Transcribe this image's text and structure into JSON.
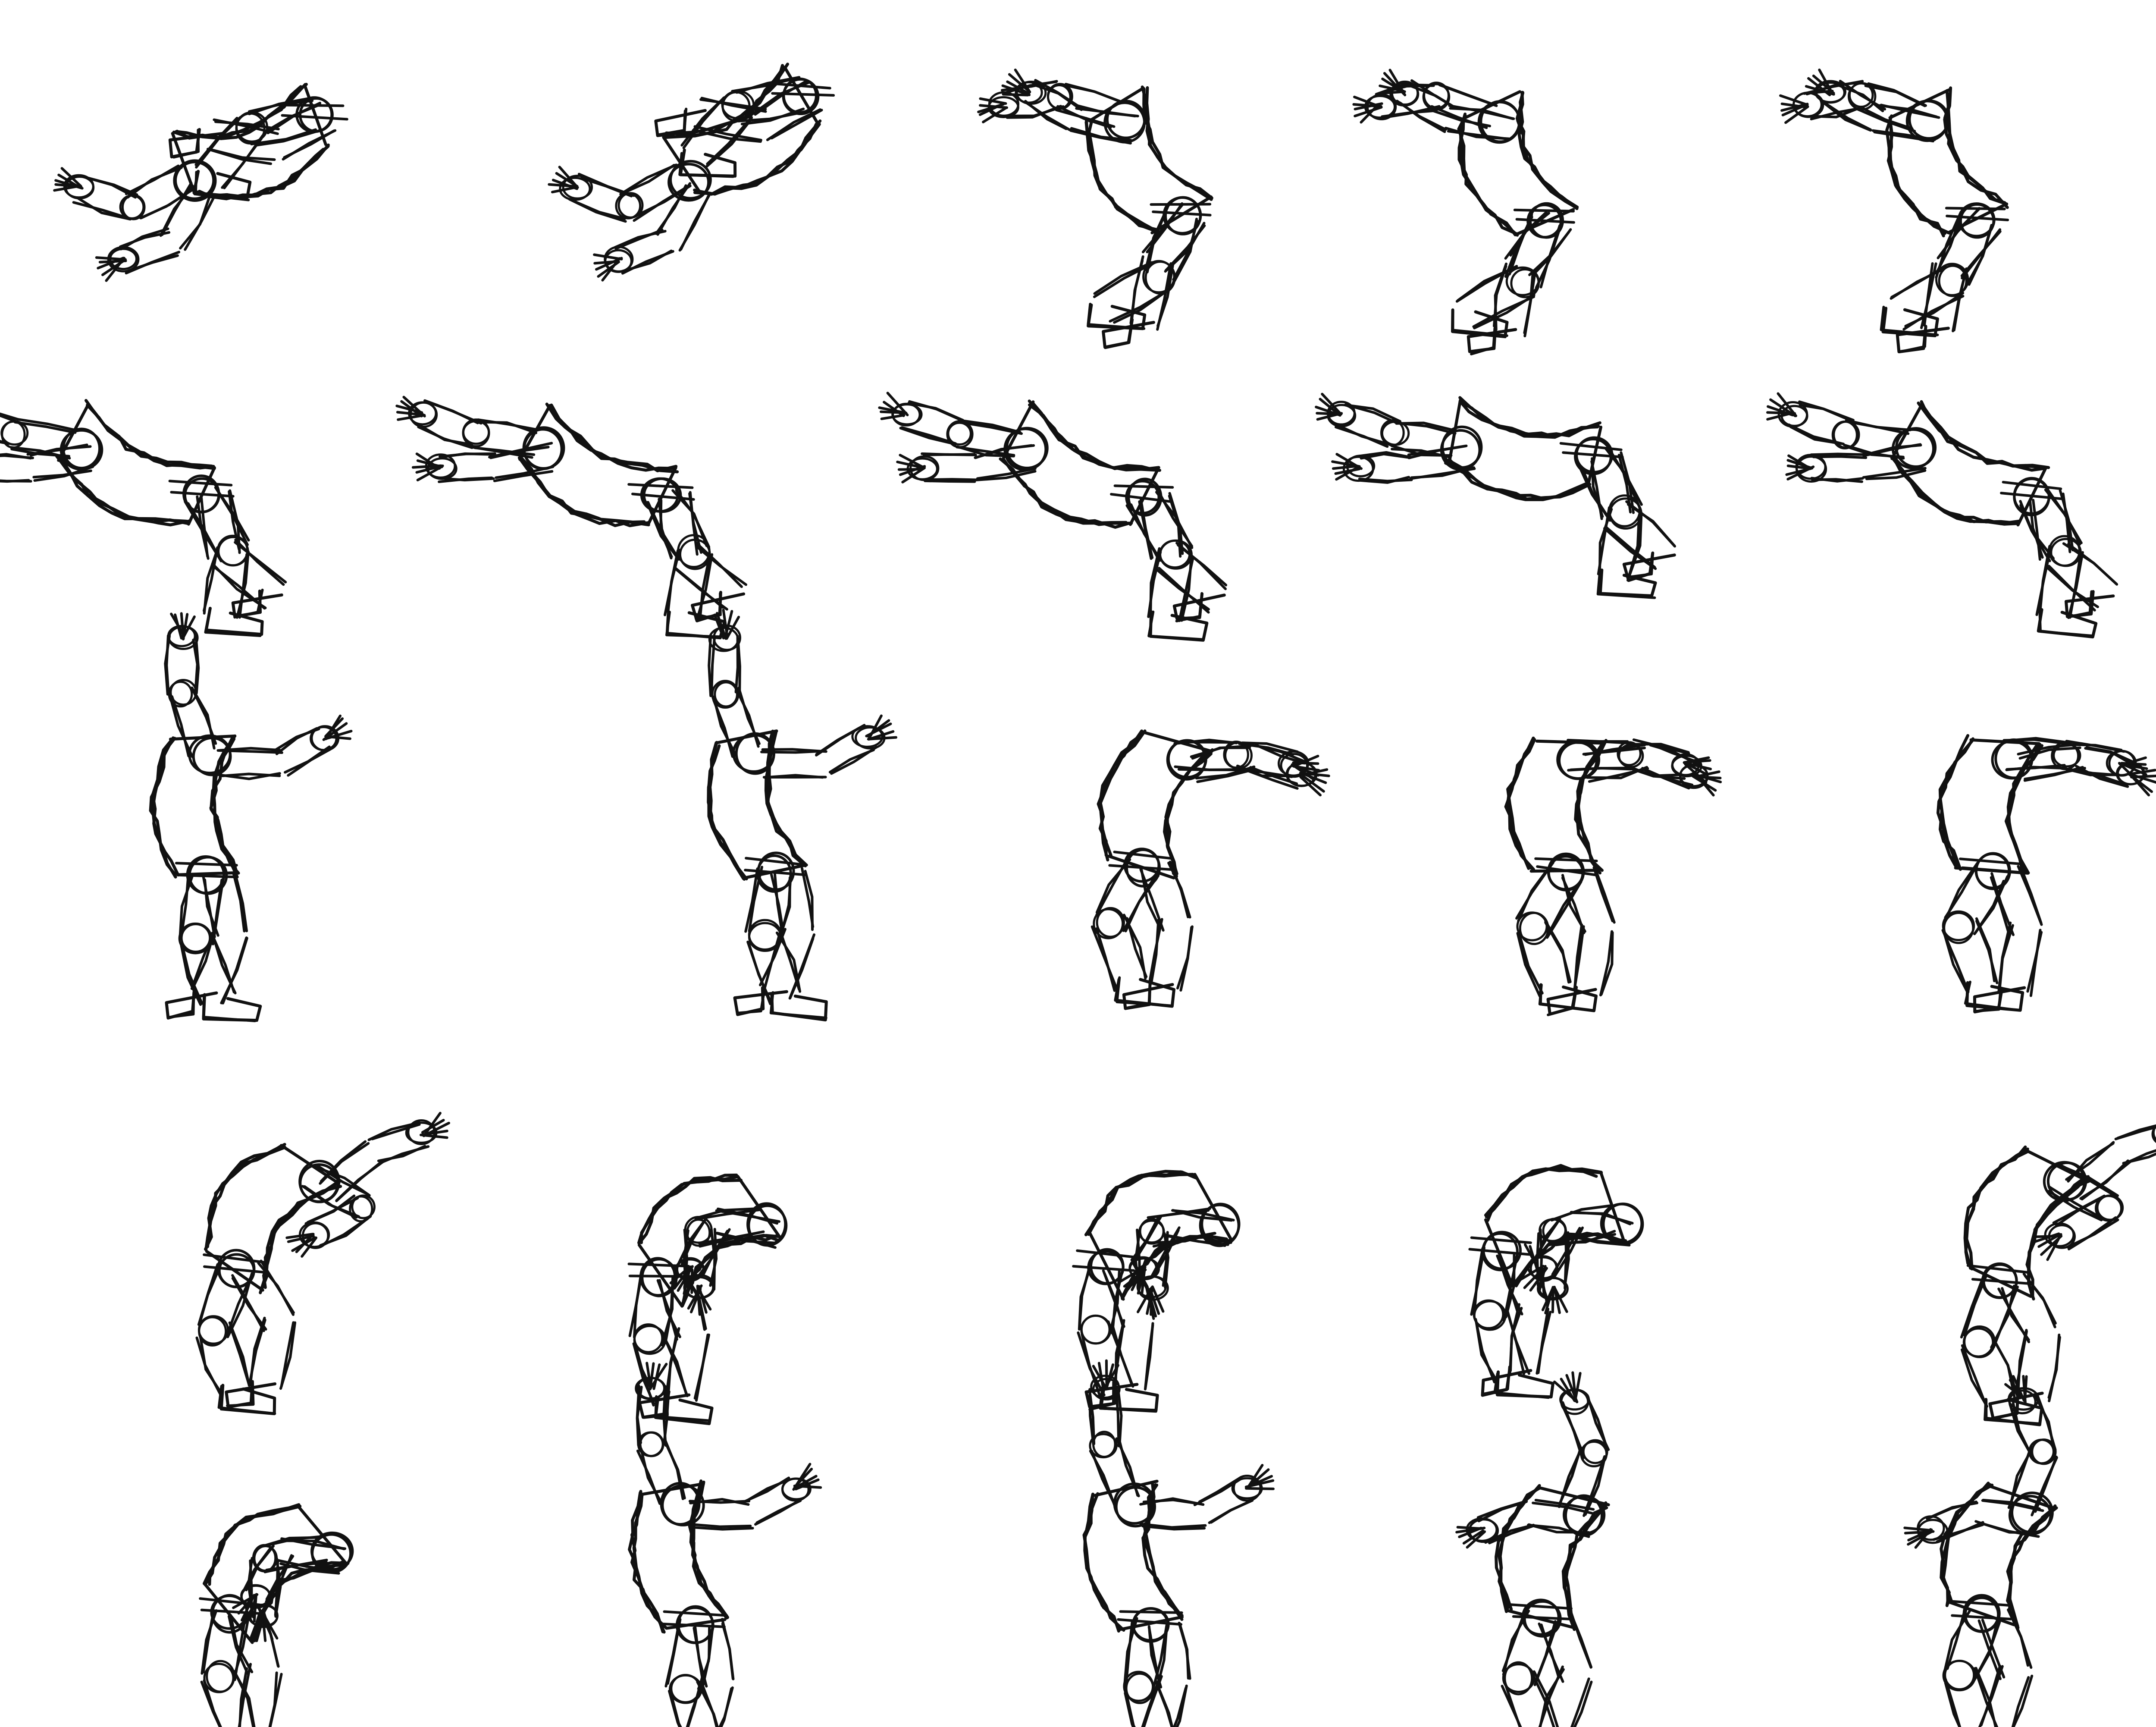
{
  "sheet": {
    "background": "#ffffff",
    "ink_color": "#111111",
    "content": "animation-pose-sketch-sheet"
  },
  "rows": [
    {
      "frames": [
        {
          "pose": "tumble"
        },
        {
          "pose": "tumble"
        },
        {
          "pose": "leap"
        },
        {
          "pose": "leap"
        },
        {
          "pose": "leap"
        }
      ]
    },
    {
      "frames": [
        {
          "pose": "arch"
        },
        {
          "pose": "arch"
        },
        {
          "pose": "arch"
        },
        {
          "pose": "arch"
        },
        {
          "pose": "arch"
        }
      ]
    },
    {
      "frames": [
        {
          "pose": "stand"
        },
        {
          "pose": "stand"
        },
        {
          "pose": "crouch"
        },
        {
          "pose": "crouch"
        },
        {
          "pose": "crouch"
        }
      ]
    },
    {
      "frames": [
        {
          "pose": "lean"
        },
        {
          "pose": "hunch"
        },
        {
          "pose": "hunch"
        },
        {
          "pose": "hunch"
        },
        {
          "pose": "lean"
        }
      ]
    },
    {
      "frames": [
        {
          "pose": "hunch"
        },
        {
          "pose": "stand"
        },
        {
          "pose": "stand"
        },
        {
          "pose": "reach"
        },
        {
          "pose": "reach"
        }
      ]
    }
  ]
}
